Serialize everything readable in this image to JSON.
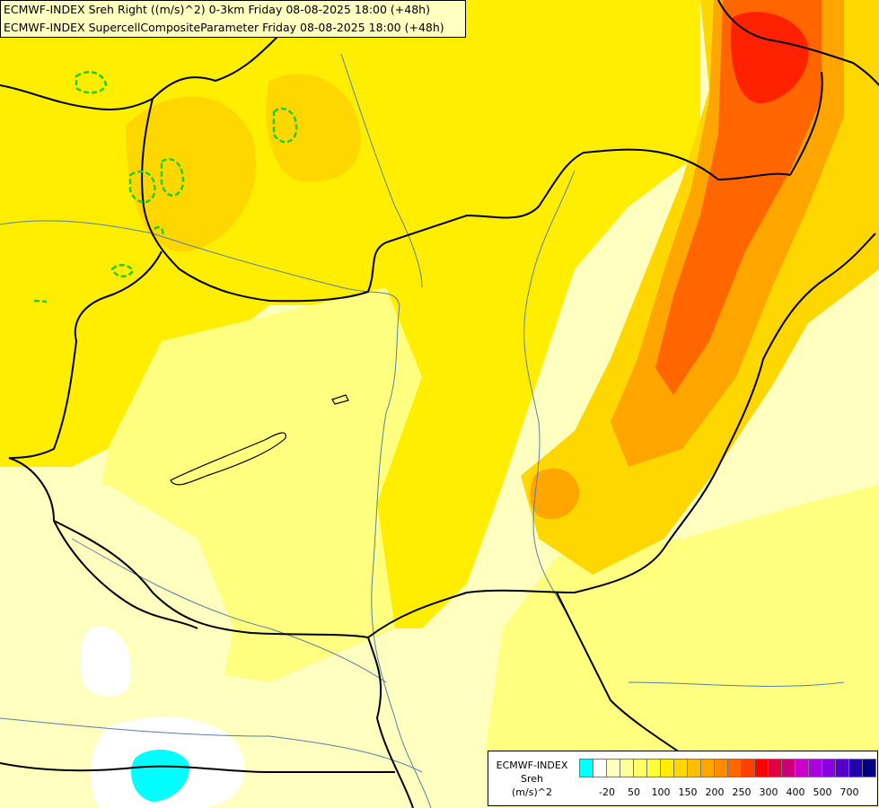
{
  "header": {
    "line1": "ECMWF-INDEX Sreh Right ((m/s)^2) 0-3km Friday 08-08-2025 18:00 (+48h)",
    "line2": "ECMWF-INDEX SupercellCompositeParameter Friday 08-08-2025 18:00 (+48h)"
  },
  "legend": {
    "model": "ECMWF-INDEX",
    "parameter": "Sreh",
    "unit": "(m/s)^2",
    "colors": [
      "#00ffff",
      "#ffffff",
      "#ffffc0",
      "#ffff99",
      "#ffff66",
      "#ffff33",
      "#ffee00",
      "#ffd700",
      "#ffbf00",
      "#ffa500",
      "#ff8c00",
      "#ff6600",
      "#ff4000",
      "#ff0000",
      "#e00040",
      "#cc0077",
      "#cc00cc",
      "#aa00dd",
      "#8800dd",
      "#5500cc",
      "#2200aa",
      "#000080"
    ],
    "ticks": [
      {
        "label": "-20",
        "index": 1
      },
      {
        "label": "50",
        "index": 3
      },
      {
        "label": "100",
        "index": 5
      },
      {
        "label": "150",
        "index": 7
      },
      {
        "label": "200",
        "index": 9
      },
      {
        "label": "250",
        "index": 11
      },
      {
        "label": "300",
        "index": 13
      },
      {
        "label": "400",
        "index": 15
      },
      {
        "label": "500",
        "index": 17
      },
      {
        "label": "700",
        "index": 19
      }
    ]
  },
  "field_colors": {
    "very_low": "#ffffff",
    "low": "#ffffc0",
    "mid_low": "#ffff80",
    "mid": "#ffee00",
    "mid_high": "#ffd700",
    "high": "#ffa500",
    "very_high": "#ff6600",
    "extreme": "#ff2200",
    "negative": "#00ffff",
    "borders": "#000000",
    "rivers": "#5a7fa0",
    "scp_contour": "#22cc22"
  }
}
